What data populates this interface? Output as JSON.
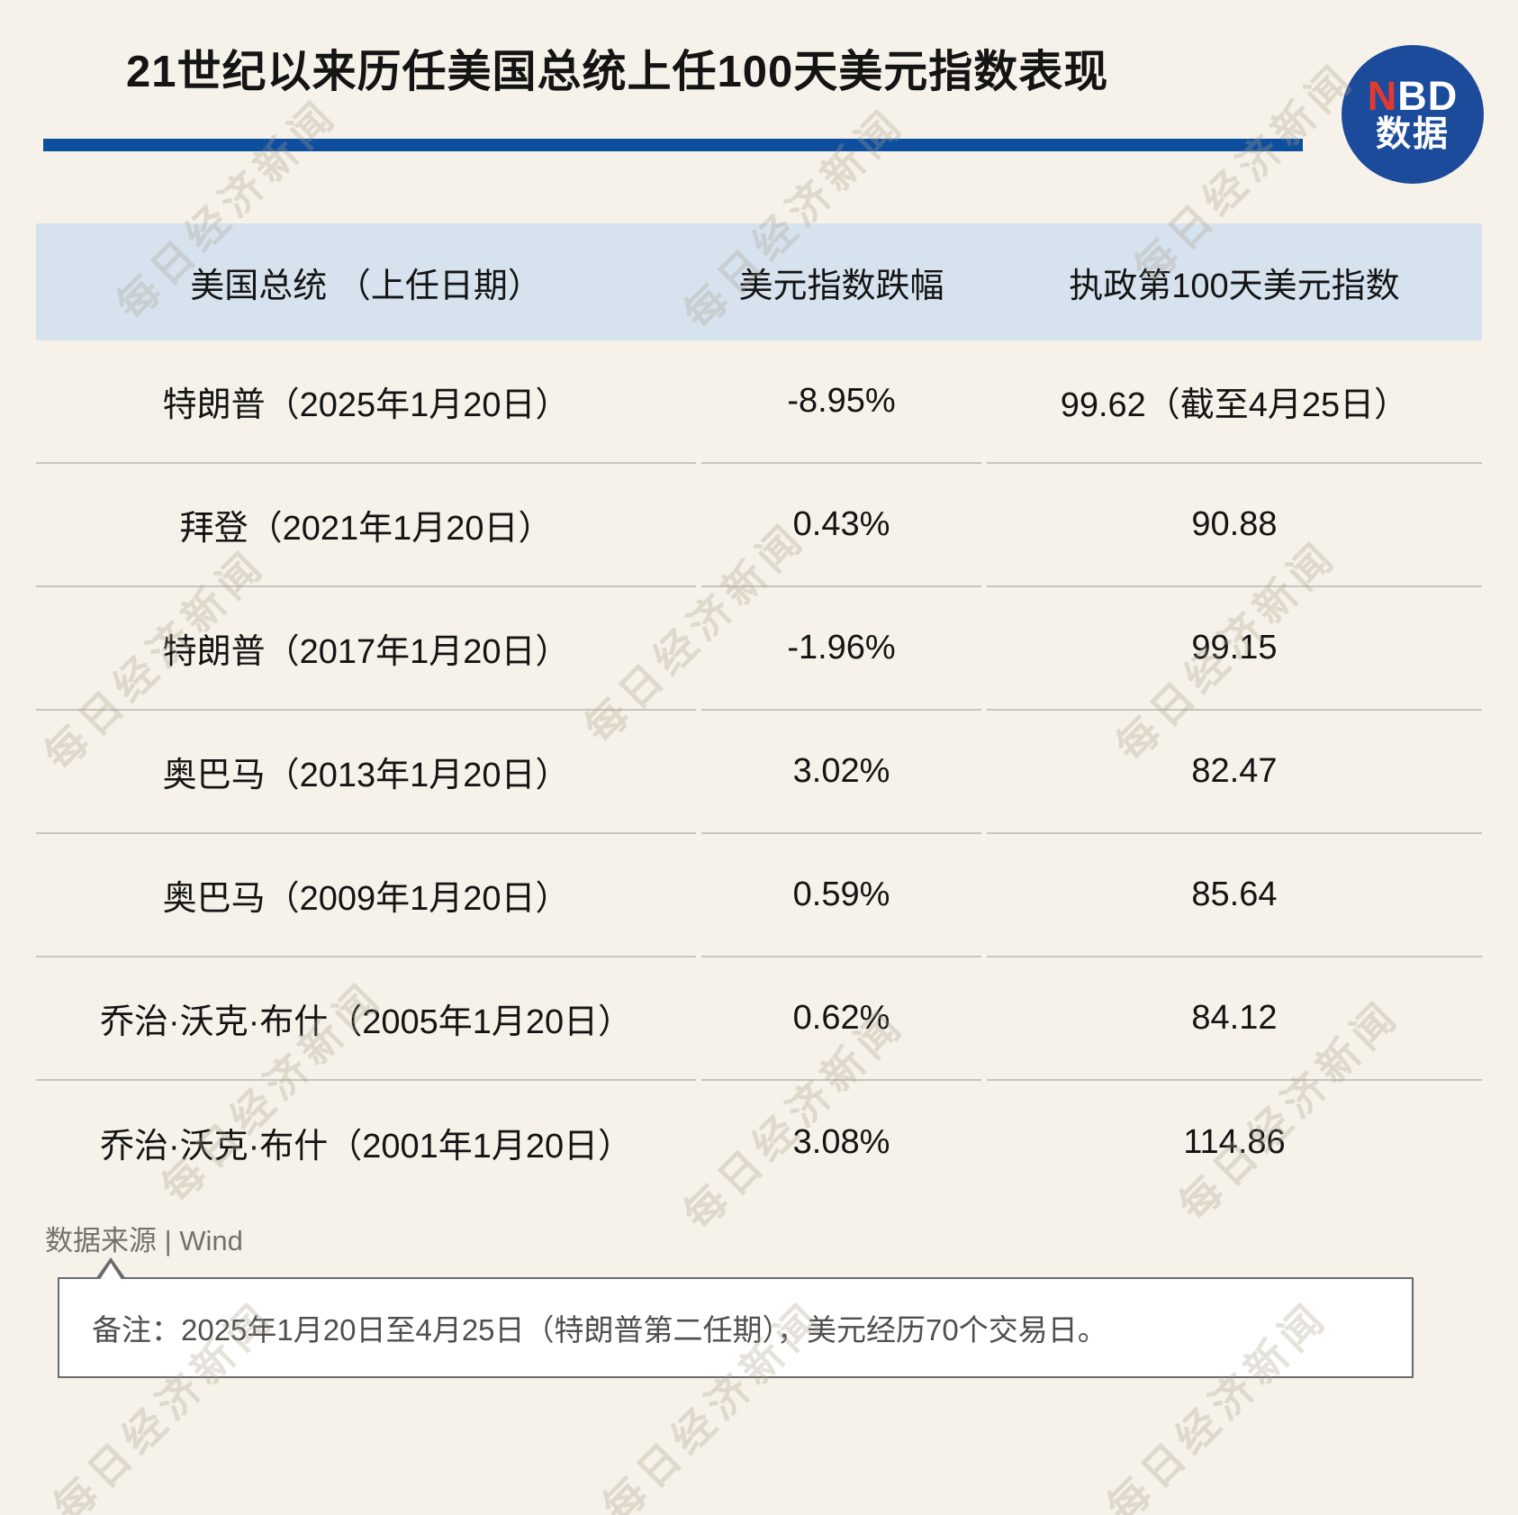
{
  "title": "21世纪以来历任美国总统上任100天美元指数表现",
  "logo": {
    "n": "N",
    "bd": "BD",
    "subtitle": "数据"
  },
  "watermark": {
    "text": "每日经济新闻"
  },
  "table": {
    "headers": [
      "美国总统 （上任日期）",
      "美元指数跌幅",
      "执政第100天美元指数"
    ],
    "rows": [
      {
        "president": "特朗普（2025年1月20日）",
        "change": "-8.95%",
        "index": "99.62（截至4月25日）"
      },
      {
        "president": "拜登（2021年1月20日）",
        "change": "0.43%",
        "index": "90.88"
      },
      {
        "president": "特朗普（2017年1月20日）",
        "change": "-1.96%",
        "index": "99.15"
      },
      {
        "president": "奥巴马（2013年1月20日）",
        "change": "3.02%",
        "index": "82.47"
      },
      {
        "president": "奥巴马（2009年1月20日）",
        "change": "0.59%",
        "index": "85.64"
      },
      {
        "president": "乔治·沃克·布什（2005年1月20日）",
        "change": "0.62%",
        "index": "84.12"
      },
      {
        "president": "乔治·沃克·布什（2001年1月20日）",
        "change": "3.08%",
        "index": "114.86"
      }
    ]
  },
  "source": {
    "label": "数据来源 | Wind"
  },
  "note": {
    "text": "备注：2025年1月20日至4月25日（特朗普第二任期），美元经历70个交易日。"
  },
  "colors": {
    "page_bg": "#f6f2e9",
    "accent_blue": "#0d4f9e",
    "header_bg": "#d6e3ef",
    "logo_blue": "#1c4b9c",
    "logo_red": "#e33a30",
    "separator": "#c9c5be"
  },
  "chart_data": {
    "type": "table",
    "title": "21世纪以来历任美国总统上任100天美元指数表现",
    "columns": [
      "美国总统（上任日期）",
      "美元指数跌幅",
      "执政第100天美元指数"
    ],
    "rows": [
      [
        "特朗普（2025年1月20日）",
        "-8.95%",
        "99.62（截至4月25日）"
      ],
      [
        "拜登（2021年1月20日）",
        "0.43%",
        "90.88"
      ],
      [
        "特朗普（2017年1月20日）",
        "-1.96%",
        "99.15"
      ],
      [
        "奥巴马（2013年1月20日）",
        "3.02%",
        "82.47"
      ],
      [
        "奥巴马（2009年1月20日）",
        "0.59%",
        "85.64"
      ],
      [
        "乔治·沃克·布什（2005年1月20日）",
        "0.62%",
        "84.12"
      ],
      [
        "乔治·沃克·布什（2001年1月20日）",
        "3.08%",
        "114.86"
      ]
    ],
    "pct_change_values": [
      -8.95,
      0.43,
      -1.96,
      3.02,
      0.59,
      0.62,
      3.08
    ],
    "index_values": [
      99.62,
      90.88,
      99.15,
      82.47,
      85.64,
      84.12,
      114.86
    ],
    "source": "Wind",
    "note": "备注：2025年1月20日至4月25日（特朗普第二任期），美元经历70个交易日。"
  }
}
